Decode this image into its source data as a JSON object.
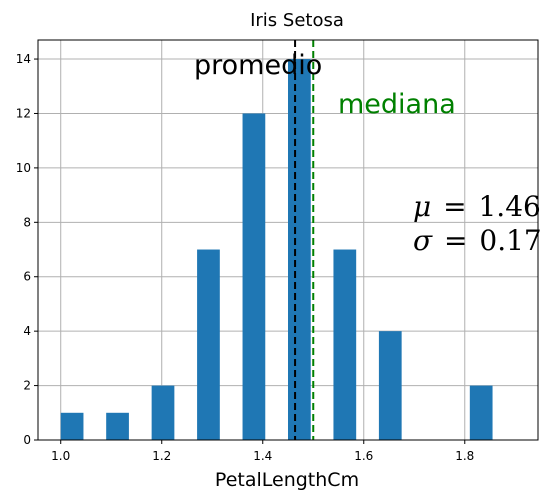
{
  "chart_data": {
    "type": "bar",
    "title": "Iris Setosa",
    "xlabel": "PetalLengthCm",
    "ylabel": "",
    "xlim": [
      0.955,
      1.945
    ],
    "ylim": [
      0,
      14.7
    ],
    "grid": true,
    "bins": [
      {
        "x0": 1.0,
        "x1": 1.045,
        "count": 1
      },
      {
        "x0": 1.09,
        "x1": 1.135,
        "count": 1
      },
      {
        "x0": 1.18,
        "x1": 1.225,
        "count": 2
      },
      {
        "x0": 1.27,
        "x1": 1.315,
        "count": 7
      },
      {
        "x0": 1.36,
        "x1": 1.405,
        "count": 12
      },
      {
        "x0": 1.45,
        "x1": 1.495,
        "count": 14
      },
      {
        "x0": 1.54,
        "x1": 1.585,
        "count": 7
      },
      {
        "x0": 1.63,
        "x1": 1.675,
        "count": 4
      },
      {
        "x0": 1.72,
        "x1": 1.765,
        "count": 0
      },
      {
        "x0": 1.81,
        "x1": 1.855,
        "count": 2
      }
    ],
    "xticks": [
      "1.0",
      "1.2",
      "1.4",
      "1.6",
      "1.8"
    ],
    "xtick_values": [
      1.0,
      1.2,
      1.4,
      1.6,
      1.8
    ],
    "yticks": [
      "0",
      "2",
      "4",
      "6",
      "8",
      "10",
      "12",
      "14"
    ],
    "ytick_values": [
      0,
      2,
      4,
      6,
      8,
      10,
      12,
      14
    ],
    "bar_color": "#1f77b4",
    "lines": [
      {
        "name": "promedio",
        "x": 1.464,
        "color": "#000000",
        "style": "dashed"
      },
      {
        "name": "mediana",
        "x": 1.5,
        "color": "#008000",
        "style": "dashed"
      }
    ],
    "annotations": {
      "mean_label": "promedio",
      "median_label": "mediana",
      "mu_symbol": "μ",
      "mu_value": "1.46",
      "sigma_symbol": "σ",
      "sigma_value": "0.17",
      "equals": "="
    },
    "colors": {
      "mean": "#000000",
      "median": "#008000",
      "grid": "#b0b0b0"
    }
  }
}
